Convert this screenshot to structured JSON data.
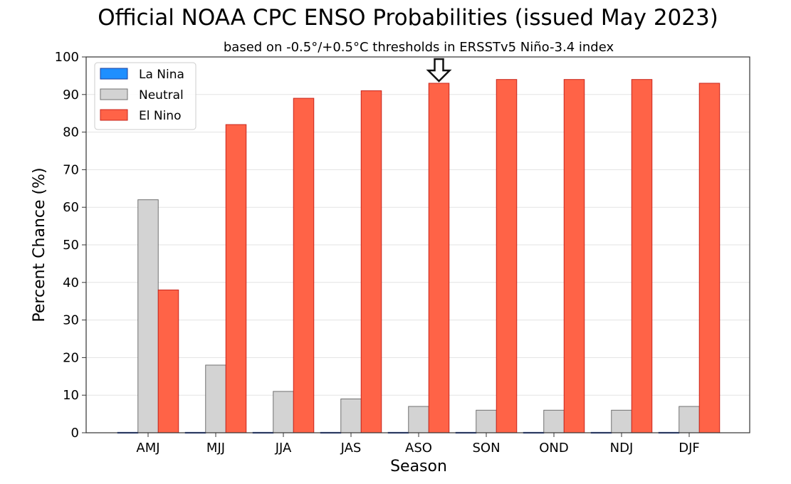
{
  "chart_data": {
    "type": "bar",
    "title": "Official NOAA CPC ENSO Probabilities (issued May 2023)",
    "subtitle": "based on -0.5°/+0.5°C thresholds in ERSSTv5 Niño-3.4 index",
    "xlabel": "Season",
    "ylabel": "Percent Chance (%)",
    "ylim": [
      0,
      100
    ],
    "yticks": [
      0,
      10,
      20,
      30,
      40,
      50,
      60,
      70,
      80,
      90,
      100
    ],
    "grid": true,
    "legend_position": "top-left",
    "categories": [
      "AMJ",
      "MJJ",
      "JJA",
      "JAS",
      "ASO",
      "SON",
      "OND",
      "NDJ",
      "DJF"
    ],
    "series": [
      {
        "name": "La Nina",
        "color": "#1f8fff",
        "edge": "#1d3f9e",
        "values": [
          0,
          0,
          0,
          0,
          0,
          0,
          0,
          0,
          0
        ]
      },
      {
        "name": "Neutral",
        "color": "#d3d3d3",
        "edge": "#707070",
        "values": [
          62,
          18,
          11,
          9,
          7,
          6,
          6,
          6,
          7
        ]
      },
      {
        "name": "El Nino",
        "color": "#ff6347",
        "edge": "#c8251c",
        "values": [
          38,
          82,
          89,
          91,
          93,
          94,
          94,
          94,
          93
        ]
      }
    ],
    "annotations": [
      {
        "type": "arrow-down",
        "category": "ASO",
        "series": "El Nino"
      }
    ]
  }
}
